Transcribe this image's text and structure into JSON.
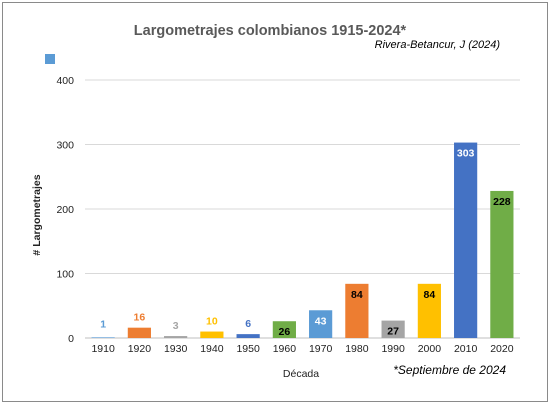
{
  "chart_data": {
    "type": "bar",
    "title": "Largometrajes colombianos 1915-2024*",
    "author": "Rivera-Betancur, J (2024)",
    "note": "*Septiembre de 2024",
    "xlabel": "Década",
    "ylabel": "# Largometrajes",
    "ylim": [
      0,
      400
    ],
    "yticks": [
      0,
      100,
      200,
      300,
      400
    ],
    "grid": true,
    "legend_marker_color": "#5b9bd5",
    "categories": [
      "1910",
      "1920",
      "1930",
      "1940",
      "1950",
      "1960",
      "1970",
      "1980",
      "1990",
      "2000",
      "2010",
      "2020"
    ],
    "values": [
      1,
      16,
      3,
      10,
      6,
      26,
      43,
      84,
      27,
      84,
      303,
      228
    ],
    "colors": [
      "#5b9bd5",
      "#ed7d31",
      "#a5a5a5",
      "#ffc000",
      "#4472c4",
      "#70ad47",
      "#5b9bd5",
      "#ed7d31",
      "#a5a5a5",
      "#ffc000",
      "#4472c4",
      "#70ad47"
    ],
    "label_inside": [
      false,
      false,
      false,
      false,
      false,
      true,
      true,
      true,
      true,
      true,
      true,
      true
    ]
  }
}
